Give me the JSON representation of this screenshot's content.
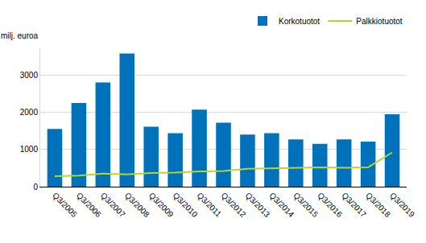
{
  "chart_data": {
    "type": "bar",
    "y_label": "milj. euroa",
    "categories": [
      "Q3/2005",
      "Q3/2006",
      "Q3/2007",
      "Q3/2008",
      "Q3/2009",
      "Q3/2010",
      "Q3/2011",
      "Q3/2012",
      "Q3/2013",
      "Q3/2014",
      "Q3/2015",
      "Q3/2016",
      "Q3/2017",
      "Q3/2018",
      "Q3/2019"
    ],
    "series": [
      {
        "name": "Korkotuotot",
        "type": "bar",
        "color": "#0072bc",
        "values": [
          1550,
          2250,
          2800,
          3580,
          1610,
          1440,
          2070,
          1720,
          1400,
          1440,
          1270,
          1150,
          1270,
          1210,
          1950
        ]
      },
      {
        "name": "Palkkiotuotot",
        "type": "line",
        "color": "#b5d334",
        "values": [
          280,
          300,
          350,
          330,
          370,
          380,
          410,
          420,
          480,
          490,
          500,
          520,
          510,
          520,
          920
        ]
      }
    ],
    "ylim": [
      0,
      3700
    ],
    "yticks": [
      0,
      1000,
      2000,
      3000
    ],
    "grid": true,
    "legend": "top-right"
  }
}
